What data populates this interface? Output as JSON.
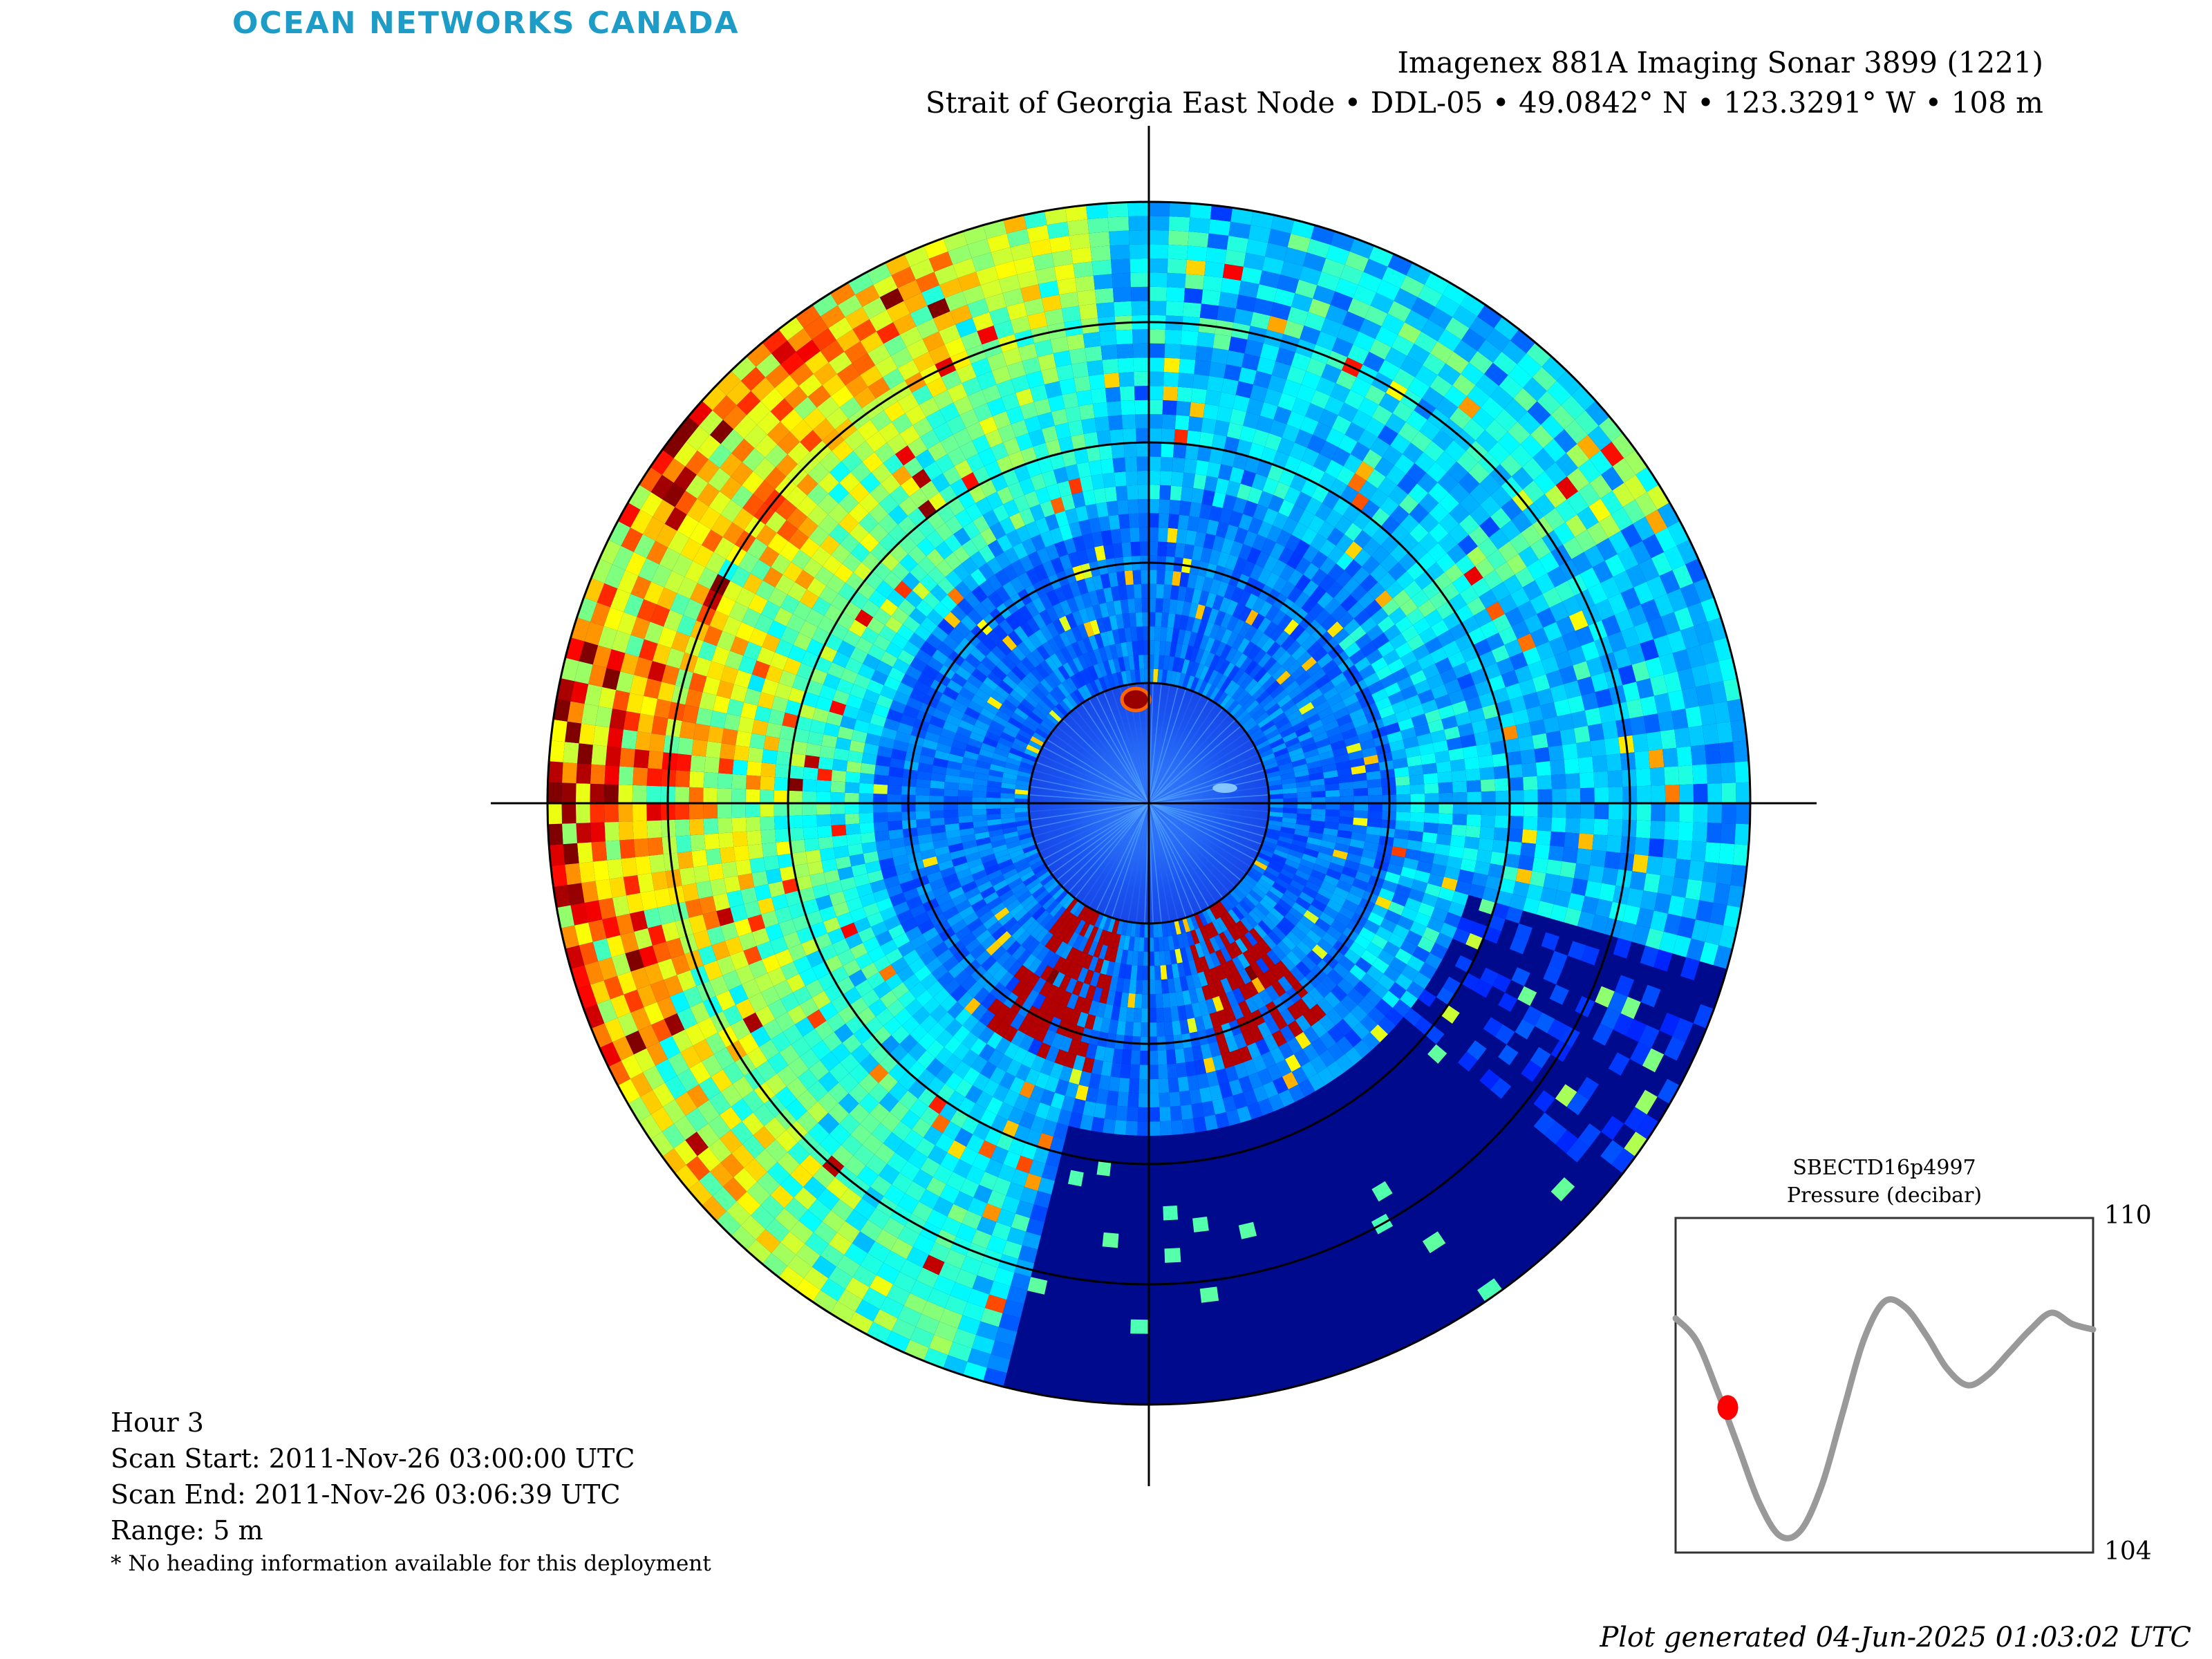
{
  "header": {
    "brand": "OCEAN NETWORKS CANADA",
    "title_line1": "Imagenex 881A Imaging Sonar 3899 (1221)",
    "title_line2": "Strait of Georgia East Node • DDL-05 • 49.0842° N • 123.3291° W • 108 m"
  },
  "info": {
    "hour": "Hour 3",
    "scan_start": "Scan Start: 2011-Nov-26 03:00:00 UTC",
    "scan_end": "Scan End: 2011-Nov-26 03:06:39 UTC",
    "range": "Range: 5 m",
    "note": "* No heading information available for this deployment"
  },
  "footer": {
    "generated": "Plot generated 04-Jun-2025 01:03:02 UTC"
  },
  "colors": {
    "trace": "#999999",
    "marker": "#ff0000",
    "brand": "#1c9cc6"
  },
  "chart_data": [
    {
      "type": "heatmap",
      "projection": "polar",
      "range_m": 5,
      "range_rings_m": [
        1,
        2,
        3,
        4,
        5
      ],
      "colormap": "jet",
      "crosshair": true
    },
    {
      "type": "line",
      "title": "SBECTD16p4997",
      "subtitle": "Pressure (decibar)",
      "ylim": [
        104,
        110
      ],
      "y_ticks": [
        "110",
        "104"
      ],
      "x": [
        0,
        0.05,
        0.1,
        0.15,
        0.2,
        0.25,
        0.3,
        0.35,
        0.4,
        0.45,
        0.5,
        0.55,
        0.6,
        0.65,
        0.7,
        0.75,
        0.8,
        0.85,
        0.9,
        0.95,
        1.0
      ],
      "values": [
        108.2,
        107.8,
        106.9,
        105.9,
        104.9,
        104.3,
        104.4,
        105.2,
        106.5,
        107.8,
        108.5,
        108.4,
        107.9,
        107.3,
        107.0,
        107.2,
        107.6,
        108.0,
        108.3,
        108.1,
        108.0
      ],
      "marker": {
        "x": 0.125,
        "y": 106.6
      }
    }
  ]
}
